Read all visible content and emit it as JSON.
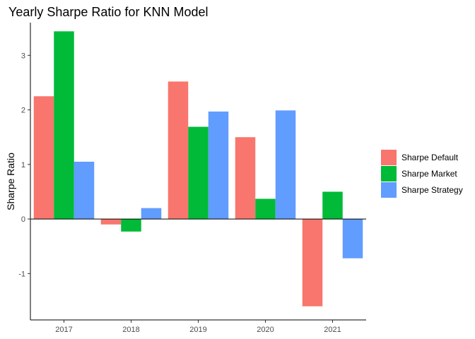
{
  "chart_data": {
    "type": "bar",
    "title": "Yearly Sharpe Ratio for KNN Model",
    "xlabel": "",
    "ylabel": "Sharpe Ratio",
    "categories": [
      "2017",
      "2018",
      "2019",
      "2020",
      "2021"
    ],
    "series": [
      {
        "name": "Sharpe Default",
        "color": "#F8766D",
        "values": [
          2.25,
          -0.1,
          2.52,
          1.5,
          -1.6
        ]
      },
      {
        "name": "Sharpe Market",
        "color": "#00BA38",
        "values": [
          3.44,
          -0.23,
          1.69,
          0.37,
          0.5
        ]
      },
      {
        "name": "Sharpe Strategy",
        "color": "#619CFF",
        "values": [
          1.05,
          0.2,
          1.97,
          1.99,
          -0.72
        ]
      }
    ],
    "ylim": [
      -1.85,
      3.6
    ],
    "yticks": [
      -1,
      0,
      1,
      2,
      3
    ],
    "grid": false,
    "legend_position": "right",
    "zero_line": true
  }
}
